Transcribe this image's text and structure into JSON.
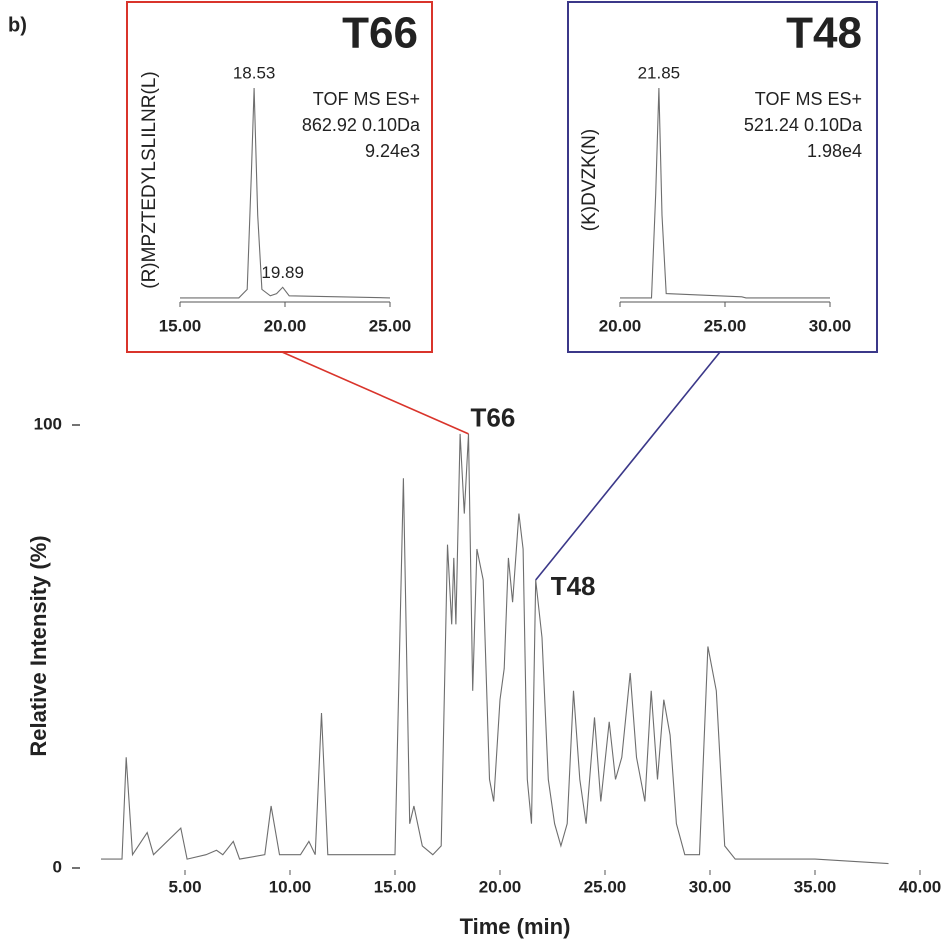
{
  "panel_label": "b)",
  "chart_data": [
    {
      "type": "line",
      "xlabel": "Time (min)",
      "ylabel": "Relative Intensity (%)",
      "line_color": "#6e6e6e",
      "xlim": [
        0,
        40
      ],
      "ylim": [
        0,
        100
      ],
      "xticks": [
        {
          "value": 5,
          "label": "5.00"
        },
        {
          "value": 10,
          "label": "10.00"
        },
        {
          "value": 15,
          "label": "15.00"
        },
        {
          "value": 20,
          "label": "20.00"
        },
        {
          "value": 25,
          "label": "25.00"
        },
        {
          "value": 30,
          "label": "30.00"
        },
        {
          "value": 35,
          "label": "35.00"
        },
        {
          "value": 40,
          "label": "40.00"
        }
      ],
      "yticks": [
        0,
        100
      ],
      "x": [
        1.0,
        2.0,
        2.2,
        2.5,
        3.2,
        3.5,
        4.8,
        5.1,
        6.0,
        6.5,
        6.8,
        7.3,
        7.6,
        8.8,
        9.1,
        9.5,
        10.5,
        10.9,
        11.2,
        11.5,
        11.8,
        15.0,
        15.4,
        15.7,
        15.9,
        16.3,
        16.8,
        17.2,
        17.5,
        17.7,
        17.8,
        17.9,
        18.1,
        18.3,
        18.5,
        18.7,
        18.9,
        19.2,
        19.5,
        19.7,
        20.0,
        20.2,
        20.4,
        20.6,
        20.9,
        21.1,
        21.3,
        21.5,
        21.7,
        22.0,
        22.3,
        22.6,
        22.9,
        23.2,
        23.5,
        23.8,
        24.1,
        24.5,
        24.8,
        25.2,
        25.5,
        25.8,
        26.2,
        26.5,
        26.9,
        27.2,
        27.5,
        27.8,
        28.1,
        28.4,
        28.8,
        29.5,
        29.9,
        30.3,
        30.7,
        31.2,
        35.0,
        38.5
      ],
      "values": [
        2,
        2,
        25,
        3,
        8,
        3,
        9,
        2,
        3,
        4,
        3,
        6,
        2,
        3,
        14,
        3,
        3,
        6,
        3,
        35,
        3,
        3,
        88,
        10,
        14,
        5,
        3,
        5,
        73,
        55,
        70,
        55,
        98,
        80,
        98,
        40,
        72,
        65,
        20,
        15,
        38,
        45,
        70,
        60,
        80,
        72,
        20,
        10,
        65,
        52,
        20,
        10,
        5,
        10,
        40,
        20,
        10,
        34,
        15,
        33,
        20,
        25,
        44,
        25,
        15,
        40,
        20,
        38,
        30,
        10,
        3,
        3,
        50,
        40,
        5,
        2,
        2,
        1
      ],
      "annotations": [
        {
          "text": "T66",
          "x": 18.5,
          "color": "#d9342b"
        },
        {
          "text": "T48",
          "x": 21.7,
          "color": "#3b3889"
        }
      ]
    },
    {
      "type": "line",
      "title": "T66",
      "ylabel": "(R)MPZTEDYLSLILNR(L)",
      "color": "#d9342b",
      "line_color": "#6e6e6e",
      "info": [
        "TOF MS ES+",
        "862.92 0.10Da",
        "9.24e3"
      ],
      "xlim": [
        15,
        25
      ],
      "ylim": [
        0,
        100
      ],
      "xticks": [
        {
          "value": 15,
          "label": "15.00"
        },
        {
          "value": 20,
          "label": "20.00"
        },
        {
          "value": 25,
          "label": "25.00"
        }
      ],
      "x": [
        15.0,
        17.8,
        18.2,
        18.4,
        18.53,
        18.7,
        18.9,
        19.3,
        19.6,
        19.89,
        20.2,
        25.0
      ],
      "values": [
        1,
        1,
        5,
        60,
        100,
        40,
        5,
        2,
        3,
        6,
        2,
        1
      ],
      "peak_labels": [
        18.53,
        19.89
      ]
    },
    {
      "type": "line",
      "title": "T48",
      "ylabel": "(K)DVZK(N)",
      "color": "#3b3889",
      "line_color": "#6e6e6e",
      "info": [
        "TOF MS ES+",
        "521.24 0.10Da",
        "1.98e4"
      ],
      "xlim": [
        20,
        30
      ],
      "ylim": [
        0,
        100
      ],
      "xticks": [
        {
          "value": 20,
          "label": "20.00"
        },
        {
          "value": 25,
          "label": "25.00"
        },
        {
          "value": 30,
          "label": "30.00"
        }
      ],
      "x": [
        20.0,
        21.5,
        21.7,
        21.85,
        22.0,
        22.2,
        25.8,
        26.0,
        30.0
      ],
      "values": [
        1,
        1,
        50,
        100,
        40,
        3,
        1.5,
        1,
        1
      ],
      "peak_labels": [
        21.85
      ]
    }
  ]
}
